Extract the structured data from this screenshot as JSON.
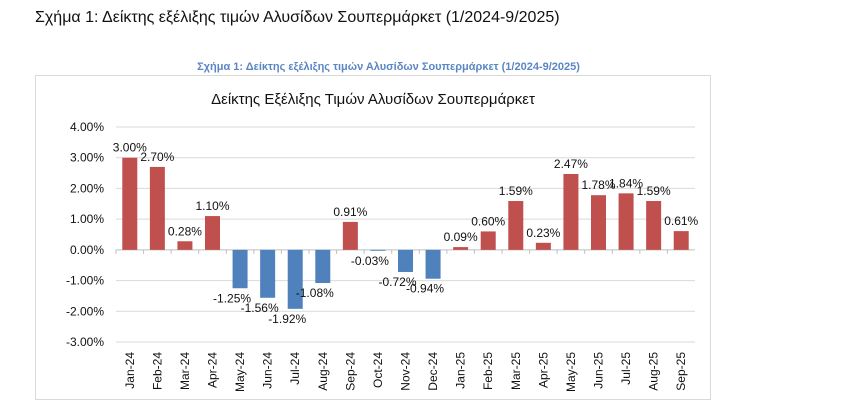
{
  "document": {
    "heading": "Σχήμα 1: Δείκτης εξέλιξης τιμών Αλυσίδων Σουπερμάρκετ (1/2024-9/2025)",
    "figure_caption": "Σχήμα 1: Δείκτης εξέλιξης τιμών Αλυσίδων Σουπερμάρκετ (1/2024-9/2025)"
  },
  "colors": {
    "positive": "#C0504D",
    "negative": "#4F81BD",
    "grid": "#d9d9d9"
  },
  "chart_data": {
    "type": "bar",
    "title": "Δείκτης Εξέλιξης Τιμών Αλυσίδων Σουπερμάρκετ",
    "xlabel": "",
    "ylabel": "",
    "ylim": [
      -3,
      4
    ],
    "yticks": [
      "4.00%",
      "3.00%",
      "2.00%",
      "1.00%",
      "0.00%",
      "-1.00%",
      "-2.00%",
      "-3.00%"
    ],
    "grid": true,
    "categories": [
      "Jan-24",
      "Feb-24",
      "Mar-24",
      "Apr-24",
      "May-24",
      "Jun-24",
      "Jul-24",
      "Aug-24",
      "Sep-24",
      "Oct-24",
      "Nov-24",
      "Dec-24",
      "Jan-25",
      "Feb-25",
      "Mar-25",
      "Apr-25",
      "May-25",
      "Jun-25",
      "Jul-25",
      "Aug-25",
      "Sep-25"
    ],
    "values": [
      3.0,
      2.7,
      0.28,
      1.1,
      -1.25,
      -1.56,
      -1.92,
      -1.08,
      0.91,
      -0.03,
      -0.72,
      -0.94,
      0.09,
      0.6,
      1.59,
      0.23,
      2.47,
      1.78,
      1.84,
      1.59,
      0.61
    ],
    "labels": [
      "3.00%",
      "2.70%",
      "0.28%",
      "1.10%",
      "-1.25%",
      "-1.56%",
      "-1.92%",
      "-1.08%",
      "0.91%",
      "-0.03%",
      "-0.72%",
      "-0.94%",
      "0.09%",
      "0.60%",
      "1.59%",
      "0.23%",
      "2.47%",
      "1.78%",
      "1.84%",
      "1.59%",
      "0.61%"
    ]
  }
}
